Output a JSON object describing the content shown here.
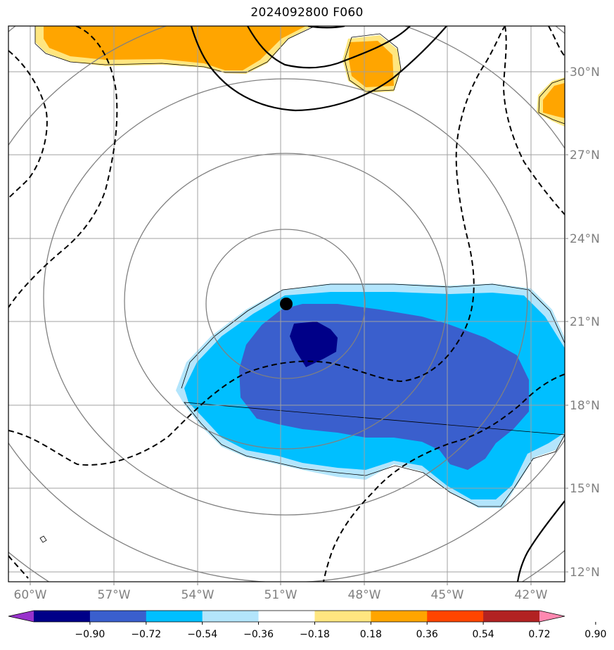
{
  "title": "2024092800 F060",
  "longitude_labels": [
    "60°W",
    "57°W",
    "54°W",
    "51°W",
    "48°W",
    "45°W",
    "42°W"
  ],
  "latitude_labels": [
    "30°N",
    "27°N",
    "24°N",
    "21°N",
    "18°N",
    "15°N",
    "12°N"
  ],
  "colorbar": {
    "tick_labels": [
      "−0.90",
      "−0.72",
      "−0.54",
      "−0.36",
      "−0.18",
      "0.18",
      "0.36",
      "0.54",
      "0.72",
      "0.90"
    ],
    "colors": [
      "#9933cc",
      "#000088",
      "#3a5fcd",
      "#00bfff",
      "#b3e5fc",
      "#ffffff",
      "#ffe680",
      "#ffa500",
      "#ff4500",
      "#b22222",
      "#ff88b0"
    ]
  },
  "storm_center": {
    "lon": -50.8,
    "lat": 21.6
  },
  "colors": {
    "grid": "#a0a0a0",
    "range_rings": "#808080",
    "contours": "#000000",
    "positive_strong": "#ffa500",
    "positive_weak": "#ffe680",
    "negative_weak": "#b3e5fc",
    "negative_mid": "#00bfff",
    "negative_strong": "#3a5fcd",
    "negative_max": "#000088"
  }
}
